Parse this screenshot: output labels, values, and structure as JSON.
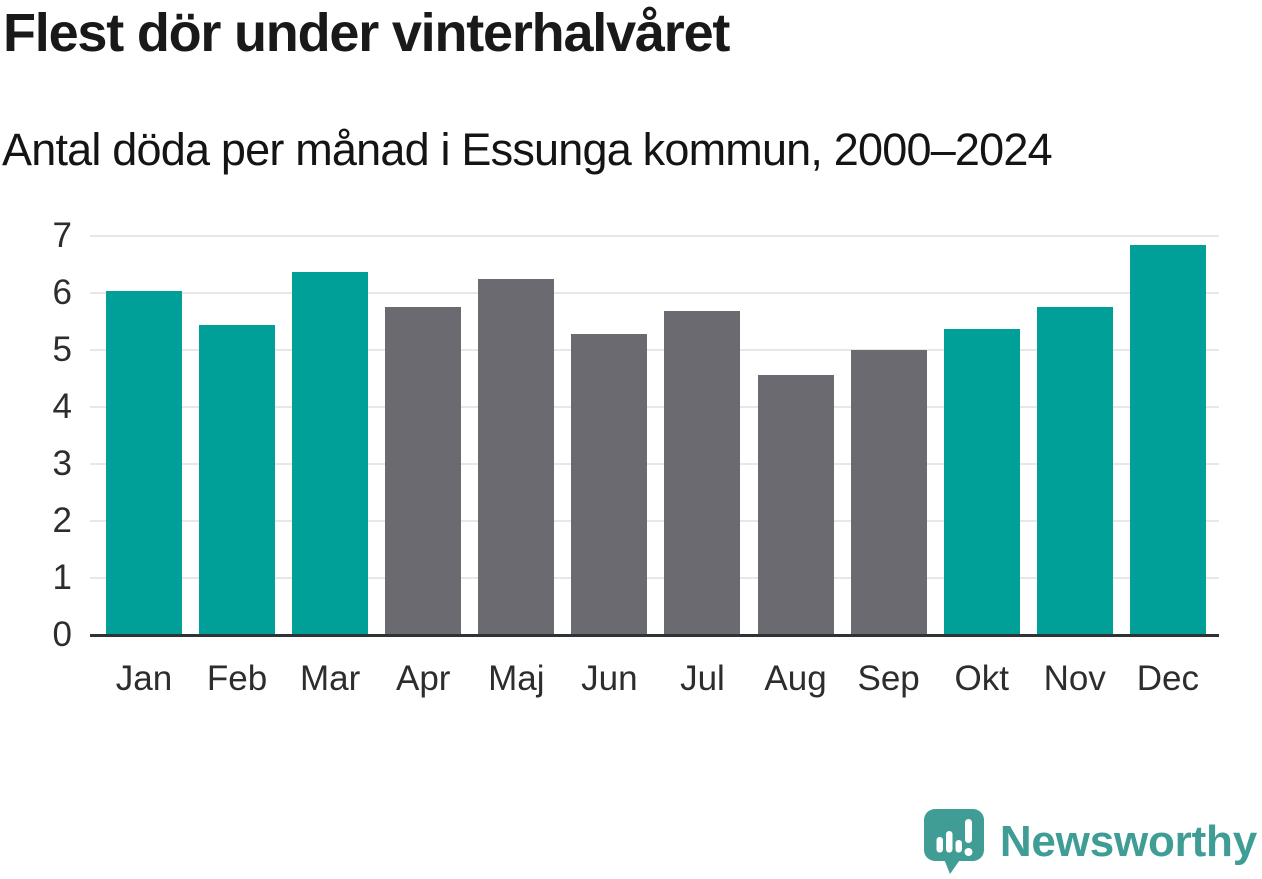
{
  "header": {
    "title": "Flest dör under vinterhalvåret",
    "subtitle": "Antal döda per månad i Essunga kommun, 2000–2024"
  },
  "chart_data": {
    "type": "bar",
    "title": "Flest dör under vinterhalvåret",
    "subtitle": "Antal döda per månad i Essunga kommun, 2000–2024",
    "categories": [
      "Jan",
      "Feb",
      "Mar",
      "Apr",
      "Maj",
      "Jun",
      "Jul",
      "Aug",
      "Sep",
      "Okt",
      "Nov",
      "Dec"
    ],
    "values": [
      6.04,
      5.44,
      6.36,
      5.76,
      6.24,
      5.28,
      5.68,
      4.56,
      5.0,
      5.36,
      5.76,
      6.84
    ],
    "bar_colors": [
      "teal",
      "teal",
      "teal",
      "gray",
      "gray",
      "gray",
      "gray",
      "gray",
      "gray",
      "teal",
      "teal",
      "teal"
    ],
    "palette": {
      "teal": "#00A099",
      "gray": "#6B6A71"
    },
    "xlabel": "",
    "ylabel": "",
    "ylim": [
      0,
      7
    ],
    "yticks": [
      0,
      1,
      2,
      3,
      4,
      5,
      6,
      7
    ],
    "grid": "horizontal-light",
    "legend": "none"
  },
  "footer": {
    "brand": "Newsworthy",
    "brand_color": "#3F9D96",
    "logo_icon": "newsworthy-speech-bubble-bar-chart-icon"
  }
}
